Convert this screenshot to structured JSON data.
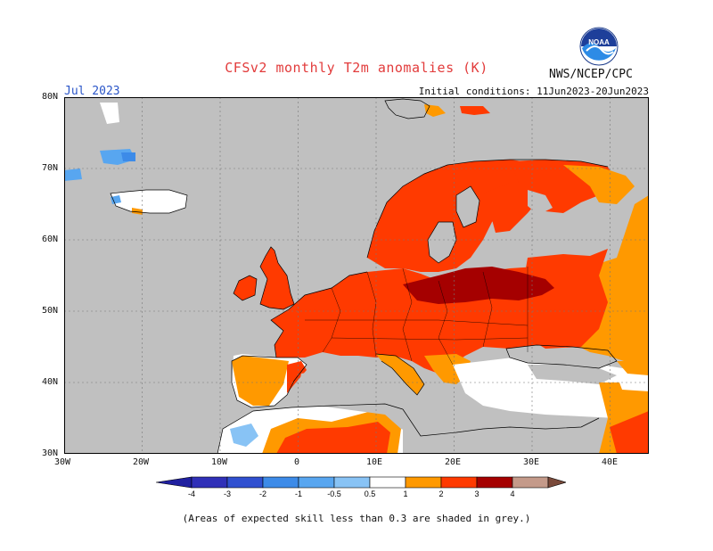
{
  "header": {
    "title": "CFSv2 monthly T2m anomalies (K)",
    "valid_month": "Jul 2023",
    "initial_conditions": "Initial conditions: 11Jun2023-20Jun2023",
    "agency": "NWS/NCEP/CPC",
    "logo_text": "NOAA"
  },
  "map": {
    "lat_labels": [
      "80N",
      "70N",
      "60N",
      "50N",
      "40N",
      "30N"
    ],
    "lon_labels": [
      "30W",
      "20W",
      "10W",
      "0",
      "10E",
      "20E",
      "30E",
      "40E"
    ],
    "lon_range": [
      -30,
      45
    ],
    "lat_range": [
      30,
      80
    ],
    "no_skill_color": "#c0c0c0",
    "ocean_color": "#c0c0c0",
    "regions": [
      {
        "name": "Western Europe",
        "anomaly_class": "1-2",
        "color": "#ff3a00"
      },
      {
        "name": "Poland / Baltic",
        "anomaly_class": "2-3",
        "color": "#a50000"
      },
      {
        "name": "Scandinavia",
        "anomaly_class": "1-2",
        "color": "#ff3a00"
      },
      {
        "name": "European Russia",
        "anomaly_class": "0.5-1 to 1-2",
        "color": "#ff9900"
      },
      {
        "name": "North Africa",
        "anomaly_class": "0.5-1 to 1-2",
        "color": "#ff9900"
      },
      {
        "name": "Iceland",
        "anomaly_class": "-0.5-0.5",
        "color": "#ffffff"
      }
    ]
  },
  "colorbar": {
    "labels": [
      "-4",
      "-3",
      "-2",
      "-1",
      "-0.5",
      "0.5",
      "1",
      "2",
      "3",
      "4"
    ],
    "colors": [
      "#2020a0",
      "#3050d0",
      "#3d8be8",
      "#58a6f0",
      "#88c3f5",
      "#ffffff",
      "#ff9900",
      "#ff3a00",
      "#a50000",
      "#c49a8a",
      "#7a4a3a"
    ]
  },
  "footnote": "(Areas of expected skill less than 0.3 are shaded in grey.)"
}
